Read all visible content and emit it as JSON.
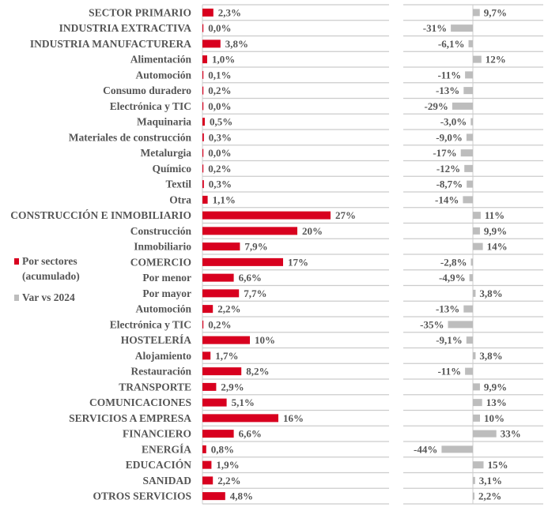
{
  "chart_data": {
    "type": "bar",
    "orientation": "horizontal",
    "categories": [
      "SECTOR PRIMARIO",
      "INDUSTRIA EXTRACTIVA",
      "INDUSTRIA MANUFACTURERA",
      "Alimentación",
      "Automoción",
      "Consumo duradero",
      "Electrónica y TIC",
      "Maquinaria",
      "Materiales de construcción",
      "Metalurgia",
      "Químico",
      "Textil",
      "Otra",
      "CONSTRUCCIÓN E INMOBILIARIO",
      "Construcción",
      "Inmobiliario",
      "COMERCIO",
      "Por menor",
      "Por mayor",
      "Automoción",
      "Electrónica y TIC",
      "HOSTELERÍA",
      "Alojamiento",
      "Restauración",
      "TRANSPORTE",
      "COMUNICACIONES",
      "SERVICIOS A EMPRESA",
      "FINANCIERO",
      "ENERGÍA",
      "EDUCACIÓN",
      "SANIDAD",
      "OTROS SERVICIOS"
    ],
    "series": [
      {
        "name": "Por sectores (acumulado)",
        "color": "#d8001f",
        "values": [
          2.3,
          0.0,
          3.8,
          1.0,
          0.1,
          0.2,
          0.0,
          0.5,
          0.3,
          0.0,
          0.2,
          0.3,
          1.1,
          27,
          20,
          7.9,
          17,
          6.6,
          7.7,
          2.2,
          0.2,
          10,
          1.7,
          8.2,
          2.9,
          5.1,
          16,
          6.6,
          0.8,
          1.9,
          2.2,
          4.8
        ],
        "labels": [
          "2,3%",
          "0,0%",
          "3,8%",
          "1,0%",
          "0,1%",
          "0,2%",
          "0,0%",
          "0,5%",
          "0,3%",
          "0,0%",
          "0,2%",
          "0,3%",
          "1,1%",
          "27%",
          "20%",
          "7,9%",
          "17%",
          "6,6%",
          "7,7%",
          "2,2%",
          "0,2%",
          "10%",
          "1,7%",
          "8,2%",
          "2,9%",
          "5,1%",
          "16%",
          "6,6%",
          "0,8%",
          "1,9%",
          "2,2%",
          "4,8%"
        ]
      },
      {
        "name": "Var vs 2024",
        "color": "#bdbdbd",
        "values": [
          9.7,
          -31,
          -6.1,
          12,
          -11,
          -13,
          -29,
          -3.0,
          -9.0,
          -17,
          -12,
          -8.7,
          -14,
          11,
          9.9,
          14,
          -2.8,
          -4.9,
          3.8,
          -13,
          -35,
          -9.1,
          3.8,
          -11,
          9.9,
          13,
          10,
          33,
          -44,
          15,
          3.1,
          2.2
        ],
        "labels": [
          "9,7%",
          "-31%",
          "-6,1%",
          "12%",
          "-11%",
          "-13%",
          "-29%",
          "-3,0%",
          "-9,0%",
          "-17%",
          "-12%",
          "-8,7%",
          "-14%",
          "11%",
          "9,9%",
          "14%",
          "-2,8%",
          "-4,9%",
          "3,8%",
          "-13%",
          "-35%",
          "-9,1%",
          "3,8%",
          "-11%",
          "9,9%",
          "13%",
          "10%",
          "33%",
          "-44%",
          "15%",
          "3,1%",
          "2,2%"
        ]
      }
    ],
    "legend": {
      "placement": "left",
      "items": [
        "Por sectores",
        "(acumulado)",
        "Var vs 2024"
      ]
    },
    "grid": true
  }
}
